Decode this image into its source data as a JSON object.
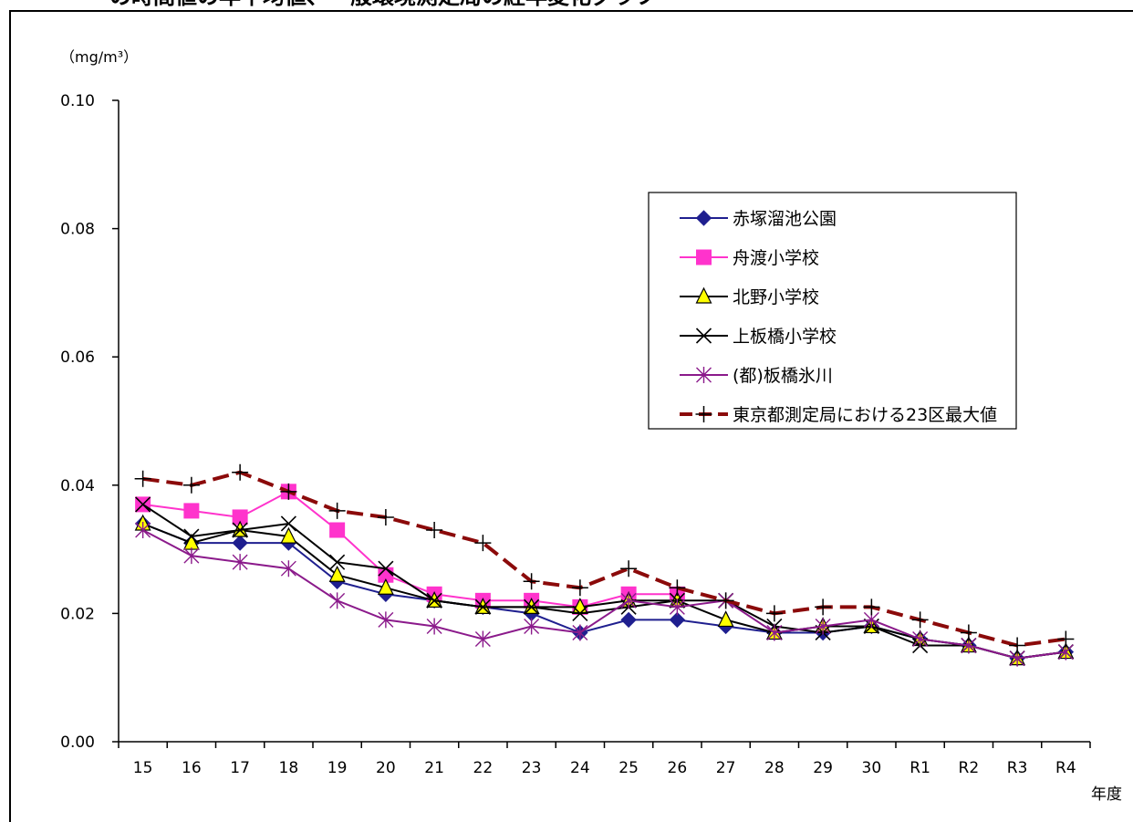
{
  "page": {
    "title_fragment": "の時間値の年平均値、一般環境測定局の経年変化グラフ"
  },
  "chart_data": {
    "type": "line",
    "title": "",
    "unit_label": "（mg/m³）",
    "xlabel": "年度",
    "ylabel": "",
    "ylim": [
      0,
      0.1
    ],
    "yticks": [
      "0.00",
      "0.02",
      "0.04",
      "0.06",
      "0.08",
      "0.10"
    ],
    "categories": [
      "15",
      "16",
      "17",
      "18",
      "19",
      "20",
      "21",
      "22",
      "23",
      "24",
      "25",
      "26",
      "27",
      "28",
      "29",
      "30",
      "R1",
      "R2",
      "R3",
      "R4"
    ],
    "legend_position": "upper-right",
    "grid": false,
    "series": [
      {
        "name": "赤塚溜池公園",
        "color": "#1f1f8f",
        "marker": "diamond",
        "dash": "none",
        "values": [
          0.034,
          0.031,
          0.031,
          0.031,
          0.025,
          0.023,
          0.022,
          0.021,
          0.02,
          0.017,
          0.019,
          0.019,
          0.018,
          0.017,
          0.017,
          0.018,
          0.016,
          0.015,
          0.013,
          0.014
        ]
      },
      {
        "name": "舟渡小学校",
        "color": "#ff33cc",
        "marker": "square",
        "dash": "none",
        "values": [
          0.037,
          0.036,
          0.035,
          0.039,
          0.033,
          0.026,
          0.023,
          0.022,
          0.022,
          0.021,
          0.023,
          0.023,
          null,
          null,
          null,
          null,
          null,
          null,
          null,
          null
        ]
      },
      {
        "name": "北野小学校",
        "color": "#000000",
        "marker": "triangle",
        "dash": "none",
        "values": [
          0.034,
          0.031,
          0.033,
          0.032,
          0.026,
          0.024,
          0.022,
          0.021,
          0.021,
          0.021,
          0.022,
          0.022,
          0.019,
          0.017,
          0.018,
          0.018,
          0.016,
          0.015,
          0.013,
          0.014
        ]
      },
      {
        "name": "上板橋小学校",
        "color": "#000000",
        "marker": "x",
        "dash": "none",
        "values": [
          0.037,
          0.032,
          0.033,
          0.034,
          0.028,
          0.027,
          0.022,
          0.021,
          0.021,
          0.02,
          0.021,
          0.022,
          0.022,
          0.018,
          0.017,
          0.018,
          0.015,
          0.015,
          0.013,
          0.014
        ]
      },
      {
        "name": "(都)板橋氷川",
        "color": "#8b1a8b",
        "marker": "asterisk",
        "dash": "none",
        "values": [
          0.033,
          0.029,
          0.028,
          0.027,
          0.022,
          0.019,
          0.018,
          0.016,
          0.018,
          0.017,
          0.022,
          0.021,
          0.022,
          0.017,
          0.018,
          0.019,
          0.016,
          0.015,
          0.013,
          0.014
        ]
      },
      {
        "name": "東京都測定局における23区最大値",
        "color": "#8b0a0a",
        "marker": "plus",
        "dash": "dashed",
        "values": [
          0.041,
          0.04,
          0.042,
          0.039,
          0.036,
          0.035,
          0.033,
          0.031,
          0.025,
          0.024,
          0.027,
          0.024,
          0.022,
          0.02,
          0.021,
          0.021,
          0.019,
          0.017,
          0.015,
          0.016
        ]
      }
    ]
  }
}
